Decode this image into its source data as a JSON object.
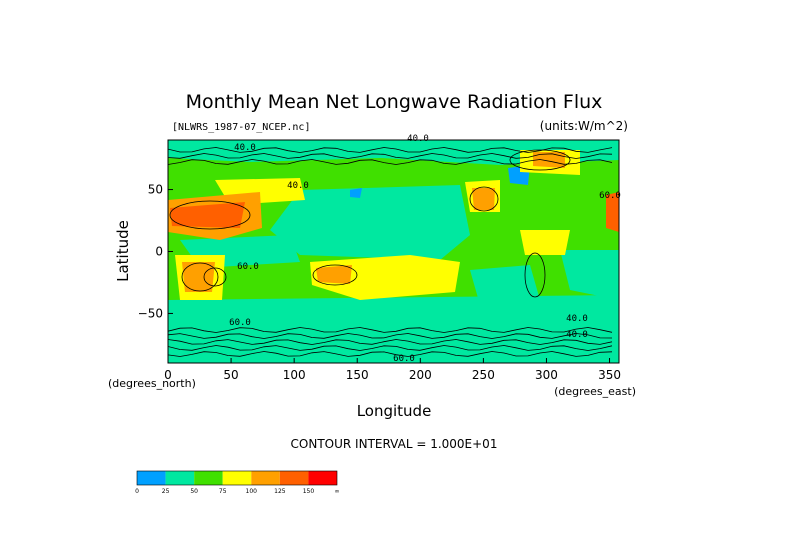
{
  "chart_data": {
    "type": "heatmap",
    "title": "Monthly Mean Net Longwave Radiation Flux",
    "file_label": "[NLWRS_1987-07_NCEP.nc]",
    "units_label": "(units:W/m^2)",
    "xlabel": "Longitude",
    "ylabel": "Latitude",
    "x_units_label": "(degrees_east)",
    "y_units_label": "(degrees_north)",
    "xlim": [
      0,
      357.5
    ],
    "ylim": [
      -90,
      90
    ],
    "x_ticks": [
      0,
      50,
      100,
      150,
      200,
      250,
      300,
      350
    ],
    "y_ticks": [
      50,
      0,
      -50
    ],
    "contour_interval_text": "CONTOUR INTERVAL = 1.000E+01",
    "contour_labels": [
      "40.0",
      "40.0",
      "40.0",
      "60.0",
      "60.0",
      "60.0",
      "40.0",
      "60.0",
      "40.0"
    ],
    "colorbar": {
      "levels": [
        "0",
        "25",
        "50",
        "75",
        "100",
        "125",
        "150",
        "∞"
      ],
      "colors": [
        "#00a0ff",
        "#00e8a0",
        "#40e000",
        "#ffff00",
        "#ffa000",
        "#ff6000",
        "#ff0000"
      ]
    }
  }
}
